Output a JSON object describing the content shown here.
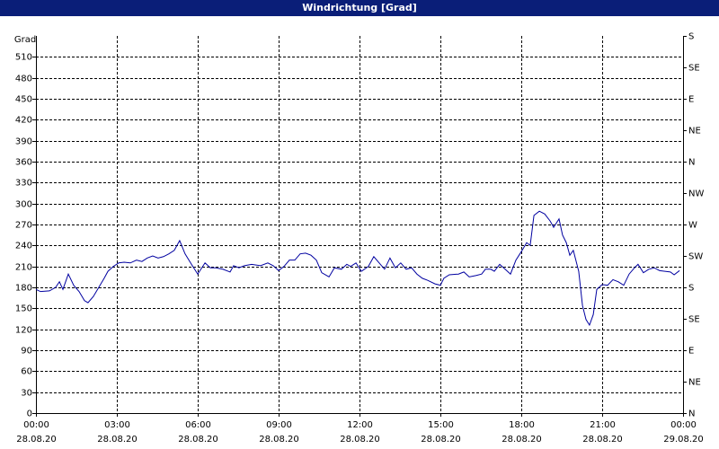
{
  "chart_data": {
    "type": "line",
    "title": "Windrichtung [Grad]",
    "ylabel": "Grad",
    "xlim": [
      0,
      24
    ],
    "ylim": [
      0,
      540
    ],
    "y2lim": [
      0,
      540
    ],
    "xticks": [
      {
        "value": 0,
        "label": "00:00",
        "date": "28.08.20"
      },
      {
        "value": 3,
        "label": "03:00",
        "date": "28.08.20"
      },
      {
        "value": 6,
        "label": "06:00",
        "date": "28.08.20"
      },
      {
        "value": 9,
        "label": "09:00",
        "date": "28.08.20"
      },
      {
        "value": 12,
        "label": "12:00",
        "date": "28.08.20"
      },
      {
        "value": 15,
        "label": "15:00",
        "date": "28.08.20"
      },
      {
        "value": 18,
        "label": "18:00",
        "date": "28.08.20"
      },
      {
        "value": 21,
        "label": "21:00",
        "date": "28.08.20"
      },
      {
        "value": 24,
        "label": "00:00",
        "date": "29.08.20"
      }
    ],
    "yticks": [
      0,
      30,
      60,
      90,
      120,
      150,
      180,
      210,
      240,
      270,
      300,
      330,
      360,
      390,
      420,
      450,
      480,
      510
    ],
    "y2ticks": [
      {
        "value": 0,
        "label": "N"
      },
      {
        "value": 45,
        "label": "NE"
      },
      {
        "value": 90,
        "label": "E"
      },
      {
        "value": 135,
        "label": "SE"
      },
      {
        "value": 180,
        "label": "S"
      },
      {
        "value": 225,
        "label": "SW"
      },
      {
        "value": 270,
        "label": "W"
      },
      {
        "value": 315,
        "label": "NW"
      },
      {
        "value": 360,
        "label": "N"
      },
      {
        "value": 405,
        "label": "NE"
      },
      {
        "value": 450,
        "label": "E"
      },
      {
        "value": 495,
        "label": "SE"
      },
      {
        "value": 540,
        "label": "S"
      }
    ],
    "grid": true,
    "x": [
      0,
      0.17,
      0.5,
      0.73,
      0.87,
      1,
      1.2,
      1.4,
      1.6,
      1.8,
      1.93,
      2.13,
      2.33,
      2.53,
      2.67,
      2.87,
      3.07,
      3.27,
      3.5,
      3.73,
      3.93,
      4.13,
      4.33,
      4.53,
      4.73,
      4.93,
      5.13,
      5.33,
      5.53,
      5.8,
      6,
      6.27,
      6.47,
      6.67,
      6.93,
      7.2,
      7.33,
      7.53,
      7.73,
      8,
      8.33,
      8.6,
      8.8,
      9,
      9.2,
      9.4,
      9.6,
      9.8,
      10,
      10.2,
      10.4,
      10.6,
      10.87,
      11.07,
      11.33,
      11.53,
      11.67,
      11.87,
      12.07,
      12.33,
      12.53,
      12.73,
      12.93,
      13.13,
      13.33,
      13.53,
      13.73,
      13.93,
      14.13,
      14.33,
      14.53,
      14.8,
      15,
      15.13,
      15.33,
      15.67,
      15.87,
      16.07,
      16.33,
      16.53,
      16.67,
      16.87,
      17,
      17.2,
      17.4,
      17.6,
      17.8,
      18,
      18.2,
      18.33,
      18.47,
      18.67,
      18.87,
      19.07,
      19.2,
      19.4,
      19.53,
      19.67,
      19.8,
      19.93,
      20.13,
      20.27,
      20.4,
      20.53,
      20.67,
      20.8,
      21,
      21.2,
      21.4,
      21.6,
      21.8,
      22,
      22.2,
      22.33,
      22.53,
      22.73,
      22.93,
      23.13,
      23.33,
      23.53,
      23.67,
      23.87
    ],
    "series": [
      {
        "color": "#0000a0",
        "values": [
          177,
          174,
          175,
          180,
          188,
          177,
          199,
          183,
          174,
          161,
          158,
          167,
          180,
          193,
          203,
          210,
          215,
          216,
          215,
          219,
          217,
          222,
          225,
          222,
          224,
          228,
          233,
          247,
          228,
          211,
          199,
          215,
          208,
          208,
          206,
          202,
          211,
          208,
          211,
          213,
          211,
          215,
          211,
          204,
          210,
          219,
          219,
          228,
          229,
          226,
          219,
          201,
          195,
          208,
          206,
          213,
          210,
          215,
          203,
          210,
          224,
          215,
          206,
          222,
          208,
          215,
          206,
          208,
          199,
          193,
          190,
          185,
          183,
          193,
          198,
          199,
          202,
          195,
          197,
          199,
          206,
          206,
          203,
          213,
          206,
          199,
          219,
          231,
          244,
          240,
          283,
          289,
          285,
          275,
          266,
          278,
          255,
          244,
          226,
          233,
          203,
          154,
          134,
          126,
          141,
          177,
          184,
          183,
          191,
          188,
          183,
          199,
          208,
          213,
          201,
          206,
          208,
          204,
          203,
          202,
          198,
          204
        ]
      }
    ]
  }
}
